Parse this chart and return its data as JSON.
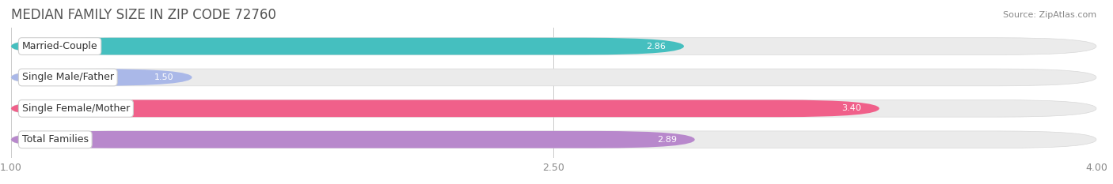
{
  "title": "MEDIAN FAMILY SIZE IN ZIP CODE 72760",
  "source": "Source: ZipAtlas.com",
  "categories": [
    "Married-Couple",
    "Single Male/Father",
    "Single Female/Mother",
    "Total Families"
  ],
  "values": [
    2.86,
    1.5,
    3.4,
    2.89
  ],
  "bar_colors": [
    "#45bfbf",
    "#aab8e8",
    "#f0608a",
    "#b888cc"
  ],
  "bar_bg_color": "#ebebeb",
  "xmin": 1.0,
  "xmax": 4.0,
  "xticks": [
    1.0,
    2.5,
    4.0
  ],
  "xtick_labels": [
    "1.00",
    "2.50",
    "4.00"
  ],
  "figsize": [
    14.06,
    2.33
  ],
  "dpi": 100,
  "title_fontsize": 12,
  "label_fontsize": 9,
  "value_fontsize": 8,
  "source_fontsize": 8,
  "bg_color": "#ffffff"
}
